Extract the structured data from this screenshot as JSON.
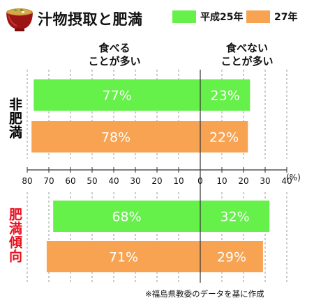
{
  "title": "汁物摂取と肥満",
  "legend": [
    {
      "label": "平成25年",
      "color": "#66f04a"
    },
    {
      "label": "27年",
      "color": "#f7a352"
    }
  ],
  "headers": {
    "left": "食べる\nことが多い",
    "right": "食べない\nことが多い"
  },
  "axis_unit": "(%)",
  "source": "※福島県教委のデータを基に作成",
  "chart_data": {
    "type": "bar",
    "orientation": "horizontal-diverging",
    "x_ticks": [
      "80",
      "70",
      "60",
      "50",
      "40",
      "30",
      "20",
      "10",
      "0",
      "10",
      "20",
      "30",
      "40"
    ],
    "xlim": [
      -80,
      40
    ],
    "groups": [
      {
        "label": "非肥満",
        "label_color": "#111111",
        "bars": [
          {
            "series": "平成25年",
            "eat": 77,
            "not_eat": 23,
            "eat_label": "77%",
            "not_eat_label": "23%"
          },
          {
            "series": "27年",
            "eat": 78,
            "not_eat": 22,
            "eat_label": "78%",
            "not_eat_label": "22%"
          }
        ]
      },
      {
        "label": "肥満傾向",
        "label_color": "#e8101e",
        "bars": [
          {
            "series": "平成25年",
            "eat": 68,
            "not_eat": 32,
            "eat_label": "68%",
            "not_eat_label": "32%"
          },
          {
            "series": "27年",
            "eat": 71,
            "not_eat": 29,
            "eat_label": "71%",
            "not_eat_label": "29%"
          }
        ]
      }
    ]
  }
}
